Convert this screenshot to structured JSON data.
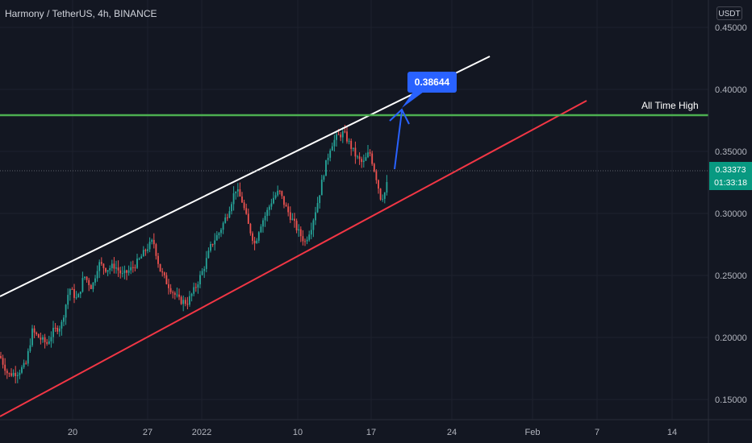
{
  "header": {
    "title": "Harmony / TetherUS, 4h, BINANCE",
    "currency": "USDT"
  },
  "colors": {
    "background": "#131722",
    "up": "#26a69a",
    "down": "#ef5350",
    "support": "#f23645",
    "resistance": "#ffffff",
    "ath": "#4caf50",
    "arrow": "#2962ff",
    "price_tag": "#089981"
  },
  "chart_data": {
    "type": "candlestick",
    "y_ticks": [
      "0.45000",
      "0.40000",
      "0.35000",
      "0.30000",
      "0.25000",
      "0.20000",
      "0.15000"
    ],
    "x_ticks": [
      "20",
      "27",
      "2022",
      "10",
      "17",
      "24",
      "Feb",
      "7",
      "14"
    ],
    "ylim": [
      0.135,
      0.465
    ],
    "current_price": "0.33373",
    "countdown": "01:33:18",
    "annotations": {
      "target_label": "0.38644",
      "ath_label": "All Time High"
    },
    "price_path": [
      [
        0,
        0.185
      ],
      [
        10,
        0.17
      ],
      [
        22,
        0.172
      ],
      [
        32,
        0.178
      ],
      [
        40,
        0.205
      ],
      [
        48,
        0.2
      ],
      [
        58,
        0.195
      ],
      [
        66,
        0.205
      ],
      [
        76,
        0.21
      ],
      [
        86,
        0.24
      ],
      [
        96,
        0.23
      ],
      [
        104,
        0.25
      ],
      [
        114,
        0.24
      ],
      [
        122,
        0.26
      ],
      [
        132,
        0.255
      ],
      [
        142,
        0.258
      ],
      [
        152,
        0.25
      ],
      [
        162,
        0.255
      ],
      [
        172,
        0.262
      ],
      [
        182,
        0.272
      ],
      [
        190,
        0.278
      ],
      [
        198,
        0.255
      ],
      [
        206,
        0.245
      ],
      [
        214,
        0.237
      ],
      [
        222,
        0.23
      ],
      [
        232,
        0.228
      ],
      [
        242,
        0.24
      ],
      [
        252,
        0.255
      ],
      [
        262,
        0.275
      ],
      [
        272,
        0.285
      ],
      [
        282,
        0.3
      ],
      [
        292,
        0.32
      ],
      [
        300,
        0.31
      ],
      [
        308,
        0.29
      ],
      [
        316,
        0.275
      ],
      [
        322,
        0.29
      ],
      [
        330,
        0.3
      ],
      [
        338,
        0.312
      ],
      [
        346,
        0.318
      ],
      [
        354,
        0.305
      ],
      [
        362,
        0.295
      ],
      [
        370,
        0.285
      ],
      [
        378,
        0.277
      ],
      [
        386,
        0.29
      ],
      [
        394,
        0.31
      ],
      [
        402,
        0.335
      ],
      [
        410,
        0.355
      ],
      [
        418,
        0.362
      ],
      [
        426,
        0.365
      ],
      [
        434,
        0.355
      ],
      [
        442,
        0.345
      ],
      [
        450,
        0.34
      ],
      [
        458,
        0.35
      ],
      [
        466,
        0.33
      ],
      [
        472,
        0.312
      ],
      [
        478,
        0.318
      ],
      [
        482,
        0.333
      ]
    ]
  }
}
